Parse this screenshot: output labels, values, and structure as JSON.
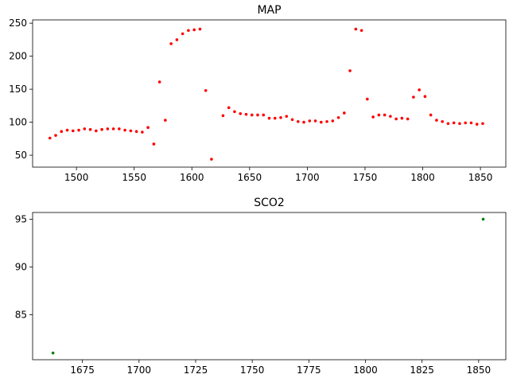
{
  "chart_data": [
    {
      "type": "scatter",
      "title": "MAP",
      "xlabel": "",
      "ylabel": "",
      "xlim": [
        1462,
        1872
      ],
      "ylim": [
        32,
        255
      ],
      "xticks": [
        1500,
        1550,
        1600,
        1650,
        1700,
        1750,
        1800,
        1850
      ],
      "yticks": [
        50,
        100,
        150,
        200,
        250
      ],
      "grid": false,
      "color": "#ff0000",
      "series": [
        {
          "x": [
            1477,
            1482,
            1487,
            1492,
            1497,
            1502,
            1507,
            1512,
            1517,
            1522,
            1527,
            1532,
            1537,
            1542,
            1547,
            1552,
            1557,
            1562,
            1567,
            1572,
            1577,
            1582,
            1587,
            1592,
            1597,
            1602,
            1607,
            1612,
            1617,
            1627,
            1632,
            1637,
            1642,
            1647,
            1652,
            1657,
            1662,
            1667,
            1672,
            1677,
            1682,
            1687,
            1692,
            1697,
            1702,
            1707,
            1712,
            1717,
            1722,
            1727,
            1732,
            1737,
            1742,
            1747,
            1752,
            1757,
            1762,
            1767,
            1772,
            1777,
            1782,
            1787,
            1792,
            1797,
            1802,
            1807,
            1812,
            1817,
            1822,
            1827,
            1832,
            1837,
            1842,
            1847,
            1852
          ],
          "y": [
            76,
            80,
            86,
            88,
            87,
            88,
            90,
            89,
            87,
            89,
            90,
            90,
            90,
            88,
            87,
            86,
            85,
            92,
            67,
            161,
            103,
            219,
            225,
            234,
            239,
            240,
            241,
            148,
            44,
            110,
            122,
            116,
            113,
            112,
            111,
            111,
            111,
            106,
            106,
            107,
            109,
            104,
            101,
            100,
            102,
            102,
            100,
            101,
            102,
            107,
            114,
            178,
            241,
            239,
            135,
            108,
            111,
            111,
            109,
            105,
            106,
            105,
            138,
            149,
            139,
            111,
            103,
            101,
            98,
            99,
            98,
            99,
            99,
            97,
            98
          ]
        }
      ]
    },
    {
      "type": "scatter",
      "title": "SCO2",
      "xlabel": "",
      "ylabel": "",
      "xlim": [
        1653,
        1862
      ],
      "ylim": [
        80.3,
        95.7
      ],
      "xticks": [
        1675,
        1700,
        1725,
        1750,
        1775,
        1800,
        1825,
        1850
      ],
      "yticks": [
        85,
        90,
        95
      ],
      "grid": false,
      "color": "#008000",
      "series": [
        {
          "x": [
            1662,
            1852
          ],
          "y": [
            81,
            95
          ]
        }
      ]
    }
  ]
}
